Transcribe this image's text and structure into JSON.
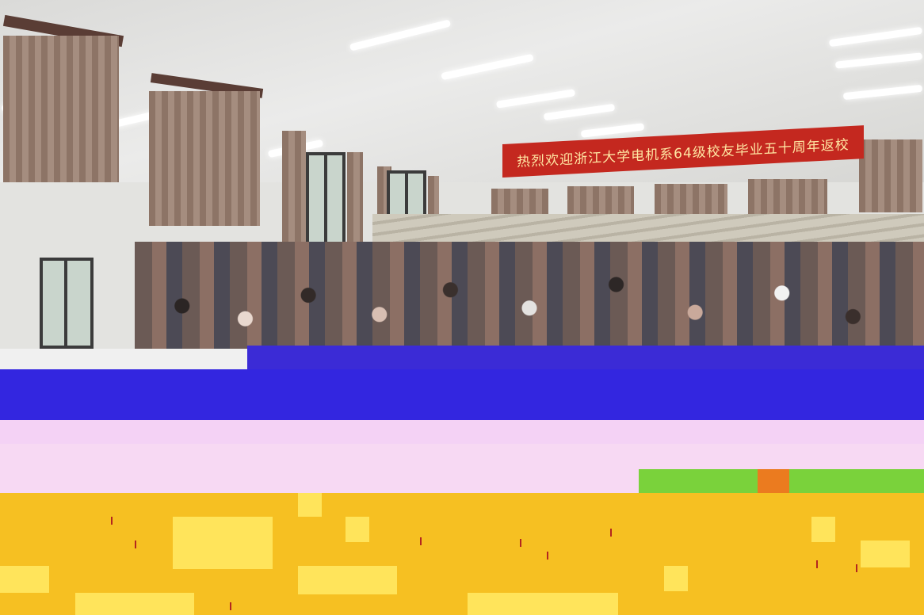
{
  "photo": {
    "banner_text": "热烈欢迎浙江大学电机系64级校友毕业五十周年返校"
  }
}
